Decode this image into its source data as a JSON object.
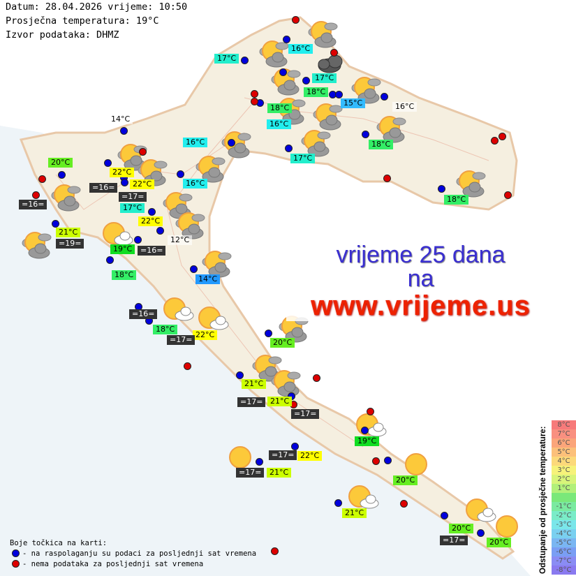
{
  "header": {
    "date_line": "Datum: 28.04.2026 vrijeme: 10:50",
    "avg_temp_line": "Prosječna temperatura: 19°C",
    "source_line": "Izvor podataka: DHMZ"
  },
  "promo": {
    "line1": "vrijeme 25 dana",
    "line2": "na",
    "line3": "www.vrijeme.us"
  },
  "legend": {
    "title": "Boje točkica na karti:",
    "blue_text": "- na raspolaganju su podaci za posljednji sat vremena",
    "red_text": "- nema podataka za posljednji sat vremena",
    "blue_color": "#0000dd",
    "red_color": "#dd0000"
  },
  "scale": {
    "title": "Odstupanje od prosječne temperature:",
    "items": [
      {
        "label": "8°C",
        "color": "#f77a7a"
      },
      {
        "label": "7°C",
        "color": "#f99080"
      },
      {
        "label": "6°C",
        "color": "#fba57a"
      },
      {
        "label": "5°C",
        "color": "#fcc07a"
      },
      {
        "label": "4°C",
        "color": "#fcd97a"
      },
      {
        "label": "3°C",
        "color": "#f6f27a"
      },
      {
        "label": "2°C",
        "color": "#d8f47a"
      },
      {
        "label": "1°C",
        "color": "#b2f07a"
      },
      {
        "label": "",
        "color": "#7ae87a"
      },
      {
        "label": "-1°C",
        "color": "#7aeaa0"
      },
      {
        "label": "-2°C",
        "color": "#7aecc8"
      },
      {
        "label": "-3°C",
        "color": "#7ae6ea"
      },
      {
        "label": "-4°C",
        "color": "#7ad0f0"
      },
      {
        "label": "-5°C",
        "color": "#7ab6f2"
      },
      {
        "label": "-6°C",
        "color": "#7a9ef4"
      },
      {
        "label": "-7°C",
        "color": "#8a8cf4"
      },
      {
        "label": "-8°C",
        "color": "#8a7af0"
      }
    ]
  },
  "label_colors": {
    "teal": "#22eecc",
    "cyan": "#22eeee",
    "green": "#33ee66",
    "lime": "#66ee22",
    "yellow": "#ffff00",
    "yellowgreen": "#ccff00",
    "green19": "#11dd22",
    "blue14": "#2299ff",
    "blue15": "#33bbff",
    "dark": "#333333",
    "plain": "transparent"
  },
  "stations": [
    {
      "text": "17°C",
      "style": "teal"
    },
    {
      "text": "16°C",
      "style": "cyan"
    },
    {
      "text": "17°C",
      "style": "teal"
    },
    {
      "text": "18°C",
      "style": "green"
    },
    {
      "text": "15°C",
      "style": "blue15"
    },
    {
      "text": "16°C",
      "style": "plain"
    },
    {
      "text": "18°C",
      "style": "green"
    },
    {
      "text": "16°C",
      "style": "cyan"
    },
    {
      "text": "17°C",
      "style": "teal"
    },
    {
      "text": "18°C",
      "style": "green"
    },
    {
      "text": "16°C",
      "style": "cyan"
    },
    {
      "text": "16°C",
      "style": "cyan"
    },
    {
      "text": "14°C",
      "style": "plain"
    },
    {
      "text": "20°C",
      "style": "lime"
    },
    {
      "text": "17°C",
      "style": "teal"
    },
    {
      "text": "22°C",
      "style": "yellow"
    },
    {
      "text": "=16=",
      "style": "dark"
    },
    {
      "text": "22°C",
      "style": "yellow"
    },
    {
      "text": "=17=",
      "style": "dark"
    },
    {
      "text": "=16=",
      "style": "dark"
    },
    {
      "text": "22°C",
      "style": "yellow"
    },
    {
      "text": "21°C",
      "style": "yellowgreen"
    },
    {
      "text": "=19=",
      "style": "dark"
    },
    {
      "text": "19°C",
      "style": "green19"
    },
    {
      "text": "=16=",
      "style": "dark"
    },
    {
      "text": "12°C",
      "style": "plain"
    },
    {
      "text": "18°C",
      "style": "green"
    },
    {
      "text": "14°C",
      "style": "blue14"
    },
    {
      "text": "=16=",
      "style": "dark"
    },
    {
      "text": "18°C",
      "style": "green"
    },
    {
      "text": "22°C",
      "style": "yellow"
    },
    {
      "text": "=17=",
      "style": "dark"
    },
    {
      "text": "20°C",
      "style": "lime"
    },
    {
      "text": "21°C",
      "style": "yellowgreen"
    },
    {
      "text": "=17=",
      "style": "dark"
    },
    {
      "text": "21°C",
      "style": "yellowgreen"
    },
    {
      "text": "=17=",
      "style": "dark"
    },
    {
      "text": "19°C",
      "style": "green19"
    },
    {
      "text": "=17=",
      "style": "dark"
    },
    {
      "text": "22°C",
      "style": "yellow"
    },
    {
      "text": "=17=",
      "style": "dark"
    },
    {
      "text": "21°C",
      "style": "yellowgreen"
    },
    {
      "text": "20°C",
      "style": "lime"
    },
    {
      "text": "21°C",
      "style": "yellowgreen"
    },
    {
      "text": "20°C",
      "style": "lime"
    },
    {
      "text": "=17=",
      "style": "dark"
    },
    {
      "text": "20°C",
      "style": "lime"
    },
    {
      "text": "18°C",
      "style": "green"
    }
  ],
  "weather_icons": [
    "partly-cloudy",
    "partly-cloudy",
    "overcast",
    "partly-cloudy",
    "partly-cloudy",
    "partly-cloudy",
    "partly-cloudy",
    "partly-cloudy",
    "partly-cloudy",
    "partly-cloudy",
    "partly-cloudy",
    "partly-cloudy",
    "partly-cloudy",
    "partly-cloudy",
    "partly-cloudy",
    "partly-cloudy",
    "partly-cloudy",
    "sun-cloud",
    "partly-cloudy",
    "partly-cloudy",
    "sun-cloud",
    "sun-cloud",
    "sun-cloud",
    "partly-cloudy",
    "partly-cloudy",
    "partly-cloudy",
    "sun-cloud",
    "sunny",
    "sunny",
    "sun-cloud",
    "sunny",
    "sunny",
    "partly-cloudy"
  ]
}
